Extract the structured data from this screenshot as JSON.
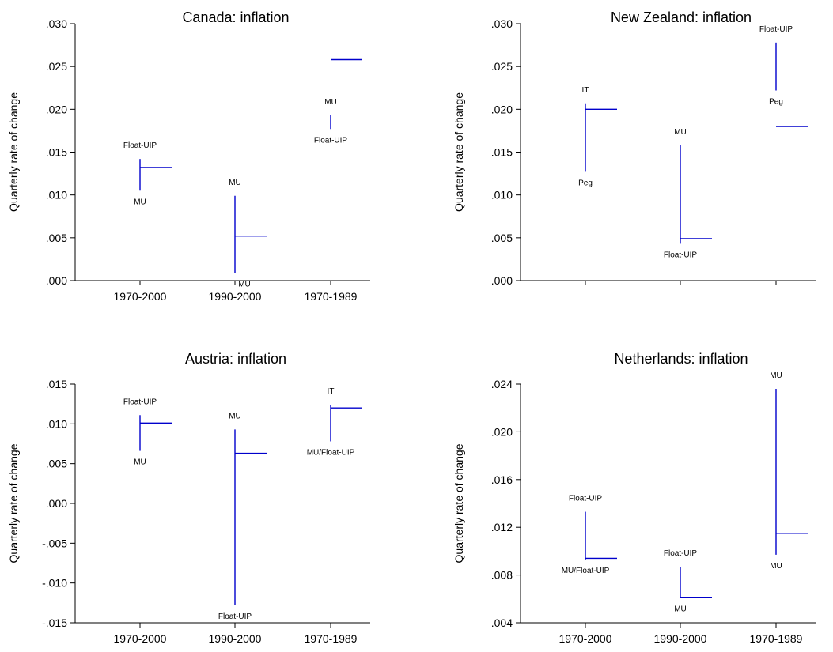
{
  "colors": {
    "series": "#0000cc",
    "axis": "#000000",
    "text": "#000000"
  },
  "chart_data": [
    {
      "type": "hi-lo-close",
      "title": "Canada: inflation",
      "ylabel": "Quarterly rate of change",
      "categories": [
        "1970-2000",
        "1990-2000",
        "1970-1989"
      ],
      "ylim": [
        0,
        0.03
      ],
      "yticks": [
        ".000",
        ".005",
        ".010",
        ".015",
        ".020",
        ".025",
        ".030"
      ],
      "yticks_values": [
        0,
        0.005,
        0.01,
        0.015,
        0.02,
        0.025,
        0.03
      ],
      "points": [
        {
          "high": 0.0142,
          "low": 0.0105,
          "close": 0.0132,
          "high_label": "Float-UIP",
          "low_label": "MU"
        },
        {
          "high": 0.0099,
          "low": 0.0009,
          "close": 0.0052,
          "high_label": "MU",
          "low_label": "MU"
        },
        {
          "high": 0.0193,
          "low": 0.0177,
          "close": 0.0258,
          "high_label": "MU",
          "low_label": "Float-UIP"
        }
      ]
    },
    {
      "type": "hi-lo-close",
      "title": "New Zealand: inflation",
      "ylabel": "Quarterly rate of change",
      "categories": [
        "",
        "",
        ""
      ],
      "ylim": [
        0,
        0.03
      ],
      "yticks": [
        ".000",
        ".005",
        ".010",
        ".015",
        ".020",
        ".025",
        ".030"
      ],
      "yticks_values": [
        0,
        0.005,
        0.01,
        0.015,
        0.02,
        0.025,
        0.03
      ],
      "points": [
        {
          "high": 0.0207,
          "low": 0.0127,
          "close": 0.02,
          "high_label": "IT",
          "low_label": "Peg"
        },
        {
          "high": 0.0158,
          "low": 0.0043,
          "close": 0.0049,
          "high_label": "MU",
          "low_label": "Float-UIP"
        },
        {
          "high": 0.0278,
          "low": 0.0222,
          "close": 0.018,
          "high_label": "Float-UIP",
          "low_label": "Peg"
        }
      ]
    },
    {
      "type": "hi-lo-close",
      "title": "Austria: inflation",
      "ylabel": "Quarterly rate of change",
      "categories": [
        "1970-2000",
        "1990-2000",
        "1970-1989"
      ],
      "ylim": [
        -0.015,
        0.015
      ],
      "yticks": [
        "-.015",
        "-.010",
        "-.005",
        ".000",
        ".005",
        ".010",
        ".015"
      ],
      "yticks_values": [
        -0.015,
        -0.01,
        -0.005,
        0,
        0.005,
        0.01,
        0.015
      ],
      "points": [
        {
          "high": 0.0111,
          "low": 0.0066,
          "close": 0.0101,
          "high_label": "Float-UIP",
          "low_label": "MU"
        },
        {
          "high": 0.0093,
          "low": -0.0128,
          "close": 0.0063,
          "high_label": "MU",
          "low_label": "Float-UIP"
        },
        {
          "high": 0.0124,
          "low": 0.0078,
          "close": 0.012,
          "high_label": "IT",
          "low_label": "MU/Float-UIP"
        }
      ]
    },
    {
      "type": "hi-lo-close",
      "title": "Netherlands: inflation",
      "ylabel": "Quarterly rate of change",
      "categories": [
        "1970-2000",
        "1990-2000",
        "1970-1989"
      ],
      "ylim": [
        0.004,
        0.024
      ],
      "yticks": [
        ".004",
        ".008",
        ".012",
        ".016",
        ".020",
        ".024"
      ],
      "yticks_values": [
        0.004,
        0.008,
        0.012,
        0.016,
        0.02,
        0.024
      ],
      "points": [
        {
          "high": 0.0133,
          "low": 0.0093,
          "close": 0.0094,
          "high_label": "Float-UIP",
          "low_label": "MU/Float-UIP"
        },
        {
          "high": 0.0087,
          "low": 0.0061,
          "close": 0.0061,
          "high_label": "Float-UIP",
          "low_label": "MU"
        },
        {
          "high": 0.0236,
          "low": 0.0097,
          "close": 0.0115,
          "high_label": "MU",
          "low_label": "MU"
        }
      ]
    }
  ]
}
